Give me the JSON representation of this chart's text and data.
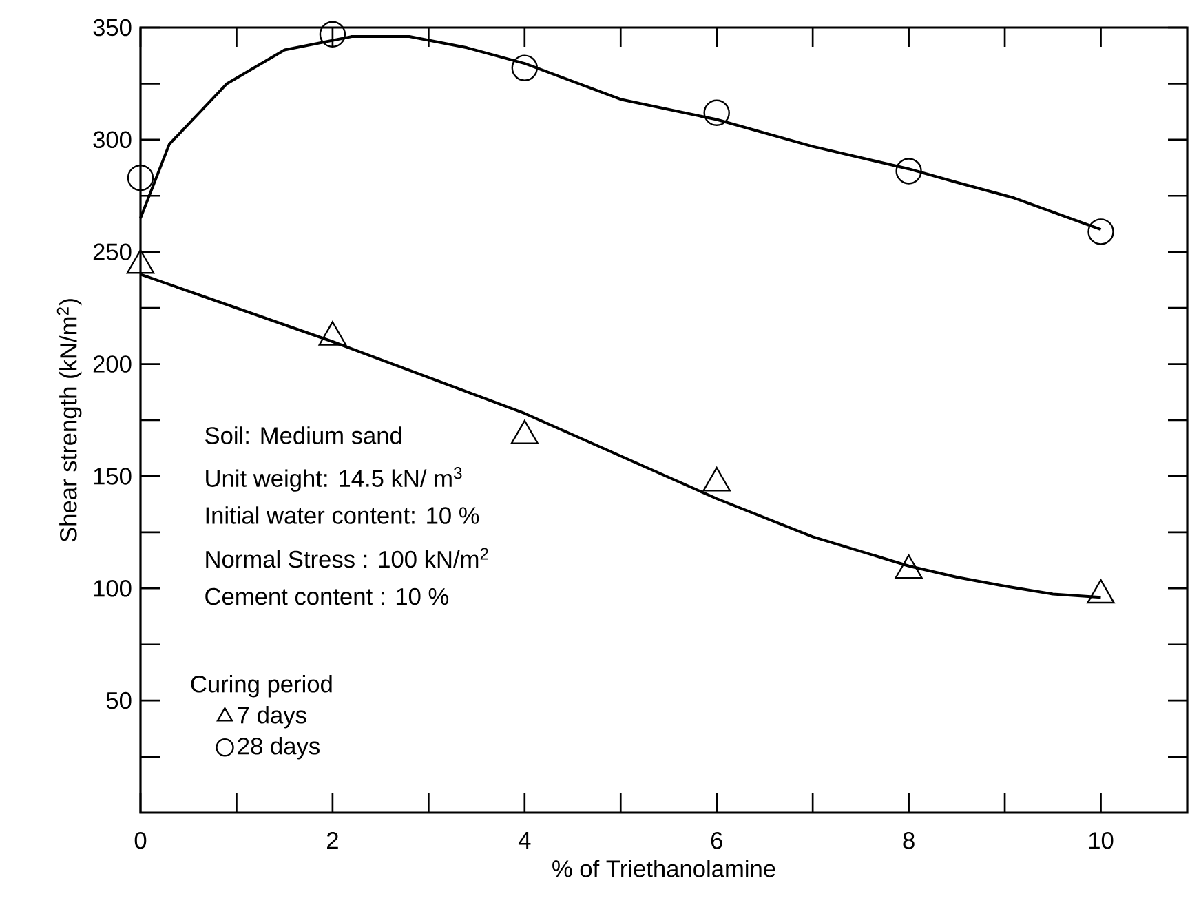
{
  "chart_data": {
    "type": "line",
    "xlabel": "% of Triethanolamine",
    "ylabel": "Shear strength (kN/m$^{2}$)",
    "xlim": [
      0,
      10.9
    ],
    "ylim": [
      0,
      350
    ],
    "xticks": [
      0,
      {
        "value": 1,
        "label": null
      },
      2,
      {
        "value": 3,
        "label": null
      },
      4,
      {
        "value": 5,
        "label": null
      },
      6,
      {
        "value": 7,
        "label": null
      },
      8,
      {
        "value": 9,
        "label": null
      },
      10
    ],
    "yticks": [
      {
        "value": 25,
        "label": null
      },
      50,
      {
        "value": 75,
        "label": null
      },
      100,
      {
        "value": 125,
        "label": null
      },
      150,
      {
        "value": 175,
        "label": null
      },
      200,
      {
        "value": 225,
        "label": null
      },
      250,
      {
        "value": 275,
        "label": null
      },
      300,
      {
        "value": 325,
        "label": null
      },
      350
    ],
    "grid": false,
    "legend": "bottom left",
    "legend_title": "Curing period",
    "annotations": [
      "Soil: Medium sand",
      "Unit weight:  14.5 kN/ m$^{3}$",
      "Initial water content: 10 %",
      "Normal Stress : 100 kN/m$^{2}$",
      "Cement content       : 10 %"
    ],
    "series": [
      {
        "name": "7 days",
        "type": "scatter",
        "marker": "triangle",
        "color": "#000000",
        "x": [
          0,
          2,
          4,
          6,
          8,
          10
        ],
        "values": [
          244,
          212,
          168,
          147,
          108,
          97
        ]
      },
      {
        "name": "28 days",
        "type": "scatter",
        "marker": "circle",
        "color": "#000000",
        "x": [
          0,
          2,
          4,
          6,
          8,
          10
        ],
        "values": [
          283,
          347,
          332,
          312,
          286,
          259
        ]
      },
      {
        "marker": "none",
        "line_style": "solid",
        "color": "#000000",
        "x": [
          0,
          2,
          4,
          6,
          7,
          8,
          8.5,
          9,
          9.5,
          10
        ],
        "values": [
          240,
          210,
          178,
          140,
          123,
          110,
          105,
          101,
          97.5,
          96
        ]
      },
      {
        "marker": "none",
        "line_style": "solid",
        "color": "#000000",
        "x": [
          0,
          0.3,
          0.9,
          1.5,
          2.2,
          2.8,
          3.4,
          4,
          5,
          6,
          7,
          8,
          8.5,
          9.1,
          10
        ],
        "values": [
          265,
          298,
          325,
          340,
          346,
          346,
          341,
          334,
          318,
          309,
          297,
          287,
          281,
          274,
          260
        ]
      }
    ]
  }
}
